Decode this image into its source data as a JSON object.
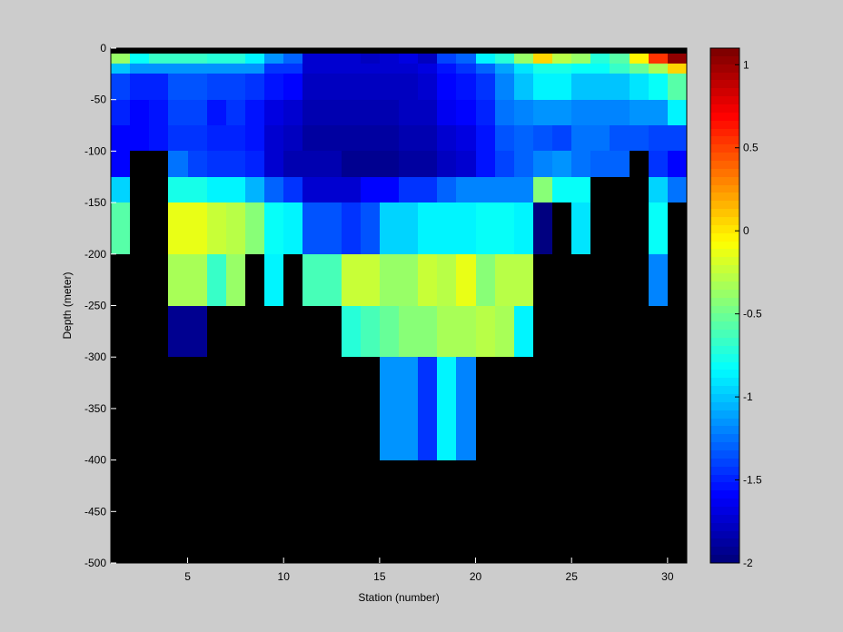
{
  "chart_data": {
    "type": "heatmap",
    "title": "",
    "xlabel": "Station (number)",
    "ylabel": "Depth (meter)",
    "xlim": [
      1,
      31
    ],
    "ylim": [
      -500,
      0
    ],
    "xticks": [
      5,
      10,
      15,
      20,
      25,
      30
    ],
    "yticks": [
      0,
      -50,
      -100,
      -150,
      -200,
      -250,
      -300,
      -350,
      -400,
      -450,
      -500
    ],
    "colorbar": {
      "colormap": "jet",
      "range": [
        -2,
        1.1
      ],
      "ticks": [
        1,
        0.5,
        0,
        -0.5,
        -1,
        -1.5,
        -2
      ]
    },
    "missing_color": "#000000",
    "depth_rows_top": [
      0,
      -5,
      -15,
      -25,
      -50,
      -75,
      -100,
      -125,
      -150,
      -200,
      -250,
      -300,
      -400
    ],
    "rows": [
      {
        "depth": -2.5,
        "values": [
          -2,
          -2,
          -2,
          -2,
          -2,
          -2,
          -2,
          -2,
          -2,
          -2,
          -2,
          -2,
          -2,
          -2,
          -2,
          -2,
          -2,
          -2,
          -2,
          -2,
          -2,
          -2,
          -2,
          -2,
          -2,
          -2,
          -2,
          -2,
          -2,
          -2
        ]
      },
      {
        "depth": -10,
        "values": [
          -0.4,
          -0.8,
          -0.65,
          -0.65,
          -0.65,
          -0.7,
          -0.7,
          -0.85,
          -1.15,
          -1.3,
          -1.75,
          -1.75,
          -1.75,
          -1.8,
          -1.75,
          -1.7,
          -1.8,
          -1.4,
          -1.3,
          -0.85,
          -0.7,
          -0.4,
          0.05,
          -0.3,
          -0.4,
          -0.7,
          -0.55,
          -0.05,
          0.55,
          1.05
        ]
      },
      {
        "depth": -20,
        "values": [
          -1.0,
          -1.15,
          -1.15,
          -1.15,
          -1.15,
          -1.15,
          -1.15,
          -1.15,
          -1.45,
          -1.45,
          -1.75,
          -1.75,
          -1.75,
          -1.75,
          -1.75,
          -1.75,
          -1.7,
          -1.55,
          -1.45,
          -1.3,
          -1.1,
          -0.9,
          -0.75,
          -0.75,
          -0.8,
          -0.8,
          -0.65,
          -0.5,
          -0.35,
          0.05
        ]
      },
      {
        "depth": -37.5,
        "values": [
          -1.4,
          -1.5,
          -1.5,
          -1.35,
          -1.35,
          -1.4,
          -1.4,
          -1.45,
          -1.55,
          -1.6,
          -1.8,
          -1.8,
          -1.8,
          -1.8,
          -1.8,
          -1.8,
          -1.75,
          -1.6,
          -1.55,
          -1.45,
          -1.2,
          -1.0,
          -0.85,
          -0.85,
          -1.0,
          -1.0,
          -1.0,
          -0.9,
          -0.8,
          -0.55
        ]
      },
      {
        "depth": -62.5,
        "values": [
          -1.5,
          -1.6,
          -1.55,
          -1.4,
          -1.4,
          -1.55,
          -1.45,
          -1.55,
          -1.7,
          -1.75,
          -1.85,
          -1.85,
          -1.85,
          -1.85,
          -1.85,
          -1.8,
          -1.8,
          -1.65,
          -1.6,
          -1.5,
          -1.25,
          -1.2,
          -1.15,
          -1.15,
          -1.2,
          -1.2,
          -1.2,
          -1.15,
          -1.15,
          -0.85
        ]
      },
      {
        "depth": -87.5,
        "values": [
          -1.6,
          -1.6,
          -1.55,
          -1.45,
          -1.45,
          -1.5,
          -1.5,
          -1.55,
          -1.75,
          -1.8,
          -1.9,
          -1.9,
          -1.9,
          -1.9,
          -1.9,
          -1.85,
          -1.85,
          -1.75,
          -1.7,
          -1.55,
          -1.35,
          -1.3,
          -1.35,
          -1.4,
          -1.25,
          -1.25,
          -1.35,
          -1.35,
          -1.4,
          -1.4
        ]
      },
      {
        "depth": -112.5,
        "values": [
          -1.6,
          null,
          null,
          -1.25,
          -1.4,
          -1.45,
          -1.45,
          -1.5,
          -1.75,
          -1.85,
          -1.85,
          -1.85,
          -1.95,
          -1.95,
          -1.95,
          -1.9,
          -1.9,
          -1.8,
          -1.75,
          -1.55,
          -1.4,
          -1.3,
          -1.2,
          -1.15,
          -1.25,
          -1.3,
          -1.3,
          null,
          -1.45,
          -1.6
        ]
      },
      {
        "depth": -137.5,
        "values": [
          -0.95,
          null,
          null,
          -0.75,
          -0.75,
          -0.85,
          -0.85,
          -1.05,
          -1.3,
          -1.45,
          -1.75,
          -1.75,
          -1.75,
          -1.6,
          -1.6,
          -1.45,
          -1.45,
          -1.3,
          -1.2,
          -1.2,
          -1.2,
          -1.2,
          -0.45,
          -0.8,
          -0.8,
          null,
          null,
          null,
          -0.95,
          -1.25
        ]
      },
      {
        "depth": -175,
        "values": [
          -0.55,
          null,
          null,
          -0.15,
          -0.15,
          -0.25,
          -0.3,
          -0.45,
          -0.8,
          -0.85,
          -1.35,
          -1.35,
          -1.45,
          -1.35,
          -0.95,
          -0.95,
          -0.85,
          -0.85,
          -0.85,
          -0.8,
          -0.8,
          -0.85,
          -2.0,
          null,
          -0.9,
          null,
          null,
          null,
          -0.8,
          null
        ]
      },
      {
        "depth": -225,
        "values": [
          null,
          null,
          null,
          -0.35,
          -0.35,
          -0.65,
          -0.4,
          null,
          -0.85,
          null,
          -0.6,
          -0.6,
          -0.25,
          -0.25,
          -0.4,
          -0.4,
          -0.25,
          -0.3,
          -0.15,
          -0.45,
          -0.3,
          -0.3,
          null,
          null,
          null,
          null,
          null,
          null,
          -1.2,
          null
        ]
      },
      {
        "depth": -275,
        "values": [
          null,
          null,
          null,
          -1.95,
          -1.95,
          null,
          null,
          null,
          null,
          null,
          null,
          null,
          -0.7,
          -0.6,
          -0.5,
          -0.45,
          -0.45,
          -0.35,
          -0.35,
          -0.3,
          -0.35,
          -0.85,
          null,
          null,
          null,
          null,
          null,
          null,
          null,
          null
        ]
      },
      {
        "depth": -350,
        "values": [
          null,
          null,
          null,
          null,
          null,
          null,
          null,
          null,
          null,
          null,
          null,
          null,
          null,
          null,
          -1.15,
          -1.15,
          -1.45,
          -0.85,
          -1.2,
          null,
          null,
          null,
          null,
          null,
          null,
          null,
          null,
          null,
          null,
          null
        ]
      }
    ]
  }
}
